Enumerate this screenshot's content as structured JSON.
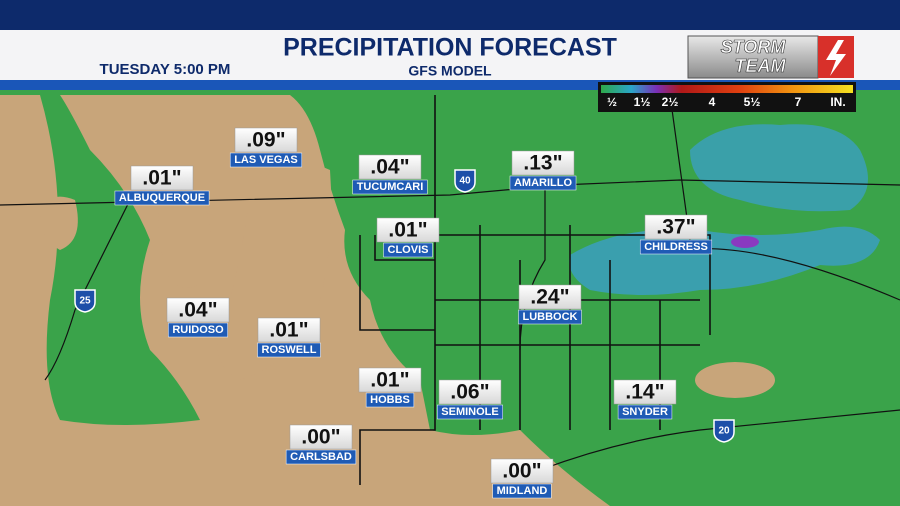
{
  "header": {
    "title": "PRECIPITATION FORECAST",
    "subtitle": "GFS MODEL",
    "valid_time": "TUESDAY  5:00 PM",
    "logo": {
      "line1": "STORM",
      "line2": "TEAM"
    }
  },
  "legend": {
    "labels": [
      "½",
      "1½",
      "2½",
      "4",
      "5½",
      "7",
      "IN."
    ]
  },
  "highways": [
    "40",
    "25",
    "20"
  ],
  "cities": [
    {
      "amount": ".09\"",
      "name": "LAS VEGAS"
    },
    {
      "amount": ".01\"",
      "name": "ALBUQUERQUE"
    },
    {
      "amount": ".04\"",
      "name": "TUCUMCARI"
    },
    {
      "amount": ".13\"",
      "name": "AMARILLO"
    },
    {
      "amount": ".01\"",
      "name": "CLOVIS"
    },
    {
      "amount": ".37\"",
      "name": "CHILDRESS"
    },
    {
      "amount": ".24\"",
      "name": "LUBBOCK"
    },
    {
      "amount": ".04\"",
      "name": "RUIDOSO"
    },
    {
      "amount": ".01\"",
      "name": "ROSWELL"
    },
    {
      "amount": ".01\"",
      "name": "HOBBS"
    },
    {
      "amount": ".06\"",
      "name": "SEMINOLE"
    },
    {
      "amount": ".14\"",
      "name": "SNYDER"
    },
    {
      "amount": ".00\"",
      "name": "CARLSBAD"
    },
    {
      "amount": ".00\"",
      "name": "MIDLAND"
    }
  ]
}
